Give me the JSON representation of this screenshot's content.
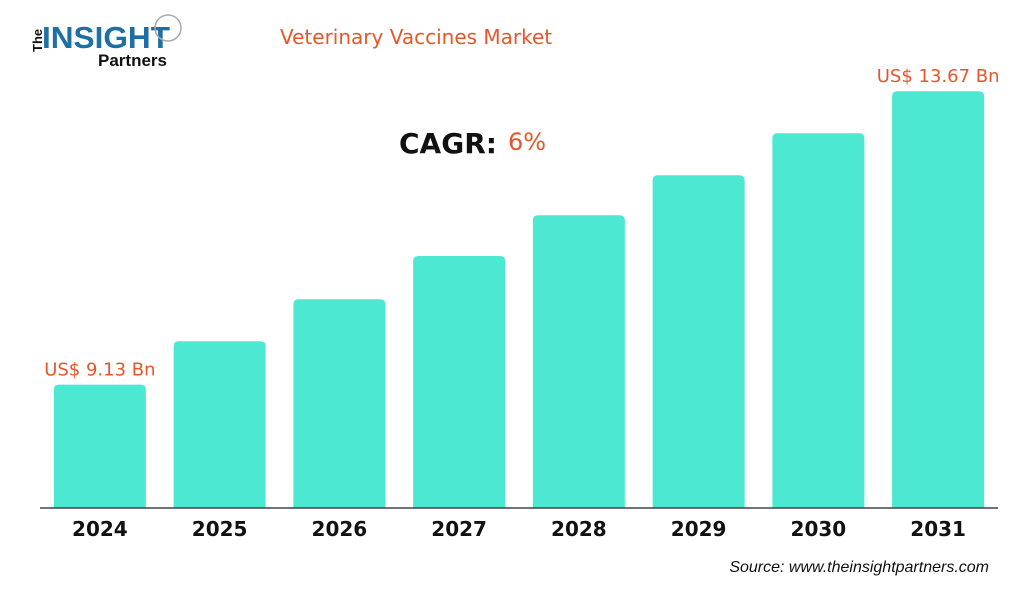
{
  "logo": {
    "the": "The",
    "insight": "INSIGHT",
    "partners": "Partners"
  },
  "colors": {
    "bar": "#4de8d2",
    "accent": "#e5572b",
    "logo_blue": "#1d6fa5",
    "axis": "#444444"
  },
  "chart_data": {
    "type": "bar",
    "title": "Veterinary Vaccines Market",
    "categories": [
      "2024",
      "2025",
      "2026",
      "2027",
      "2028",
      "2029",
      "2030",
      "2031"
    ],
    "values": [
      9.13,
      9.8,
      10.45,
      11.12,
      11.75,
      12.37,
      13.02,
      13.67
    ],
    "data_labels": [
      {
        "index": 0,
        "text": "US$ 9.13 Bn"
      },
      {
        "index": 7,
        "text": "US$ 13.67 Bn"
      }
    ],
    "ylim": [
      7.22,
      14.2
    ],
    "unit": "US$ Bn",
    "grid": false,
    "xlabel": "",
    "ylabel": ""
  },
  "cagr": {
    "label": "CAGR:",
    "value": "6%"
  },
  "source": "Source: www.theinsightpartners.com"
}
